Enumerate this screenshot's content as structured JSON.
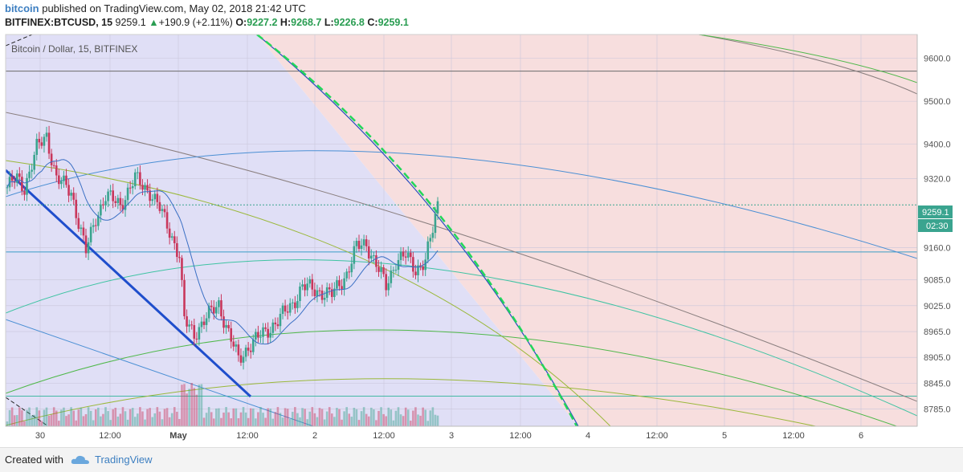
{
  "header": {
    "brand": "bitcoin",
    "published": " published on TradingView.com, May 02, 2018 21:42 UTC",
    "symbol": "BITFINEX:BTCUSD, 15",
    "last": "9259.1",
    "change": "+190.9 (+2.11%)",
    "o_label": "O:",
    "o": "9227.2",
    "h_label": "H:",
    "h": "9268.7",
    "l_label": "L:",
    "l": "9226.8",
    "c_label": "C:",
    "c": "9259.1"
  },
  "chart_data": {
    "type": "candlestick",
    "title": "Bitcoin / Dollar, 15, BITFINEX",
    "ylim": [
      8745,
      9655
    ],
    "y_ticks": [
      "9600.0",
      "9500.0",
      "9400.0",
      "9320.0",
      "9160.0",
      "9085.0",
      "9025.0",
      "8965.0",
      "8905.0",
      "8845.0",
      "8785.0"
    ],
    "x_ticks": [
      "30",
      "12:00",
      "May",
      "12:00",
      "2",
      "12:00",
      "3",
      "12:00",
      "4",
      "12:00",
      "5",
      "12:00",
      "6"
    ],
    "price_label": "9259.1",
    "countdown_label": "02:30",
    "last_price": 9259.1,
    "horizontal_lines": [
      9570,
      9150,
      8815
    ],
    "price_anchors": [
      {
        "t": 0,
        "p": 9300
      },
      {
        "t": 4,
        "p": 9320
      },
      {
        "t": 7,
        "p": 9300
      },
      {
        "t": 12,
        "p": 9390
      },
      {
        "t": 16,
        "p": 9420
      },
      {
        "t": 20,
        "p": 9320
      },
      {
        "t": 26,
        "p": 9290
      },
      {
        "t": 32,
        "p": 9150
      },
      {
        "t": 36,
        "p": 9230
      },
      {
        "t": 40,
        "p": 9280
      },
      {
        "t": 46,
        "p": 9260
      },
      {
        "t": 52,
        "p": 9320
      },
      {
        "t": 58,
        "p": 9290
      },
      {
        "t": 62,
        "p": 9250
      },
      {
        "t": 66,
        "p": 9200
      },
      {
        "t": 70,
        "p": 9140
      },
      {
        "t": 72,
        "p": 8990
      },
      {
        "t": 76,
        "p": 8960
      },
      {
        "t": 80,
        "p": 8990
      },
      {
        "t": 86,
        "p": 9030
      },
      {
        "t": 90,
        "p": 8960
      },
      {
        "t": 94,
        "p": 8900
      },
      {
        "t": 98,
        "p": 8930
      },
      {
        "t": 104,
        "p": 8960
      },
      {
        "t": 110,
        "p": 8990
      },
      {
        "t": 116,
        "p": 9030
      },
      {
        "t": 120,
        "p": 9070
      },
      {
        "t": 126,
        "p": 9060
      },
      {
        "t": 132,
        "p": 9050
      },
      {
        "t": 138,
        "p": 9100
      },
      {
        "t": 142,
        "p": 9160
      },
      {
        "t": 146,
        "p": 9170
      },
      {
        "t": 150,
        "p": 9120
      },
      {
        "t": 154,
        "p": 9070
      },
      {
        "t": 158,
        "p": 9130
      },
      {
        "t": 162,
        "p": 9140
      },
      {
        "t": 166,
        "p": 9110
      },
      {
        "t": 170,
        "p": 9130
      },
      {
        "t": 173,
        "p": 9200
      },
      {
        "t": 175,
        "p": 9259
      }
    ],
    "colors": {
      "bg_left": "#e0dff6",
      "bg_right": "#f7dede",
      "up": "#3aa48f",
      "down": "#c9375c",
      "trend_blue": "#1f4ecc",
      "dash_green": "#22d65a",
      "ma_blue": "#3a6fc4",
      "arc_blue": "#4a8fd4",
      "arc_cyan": "#3ec3a2",
      "arc_green": "#4fb84a",
      "arc_yellow": "#9ab83a",
      "arc_gray": "#8a7f7f",
      "hline": "#6b6b6b"
    }
  },
  "footer": {
    "created": "Created with",
    "brand": "TradingView"
  }
}
